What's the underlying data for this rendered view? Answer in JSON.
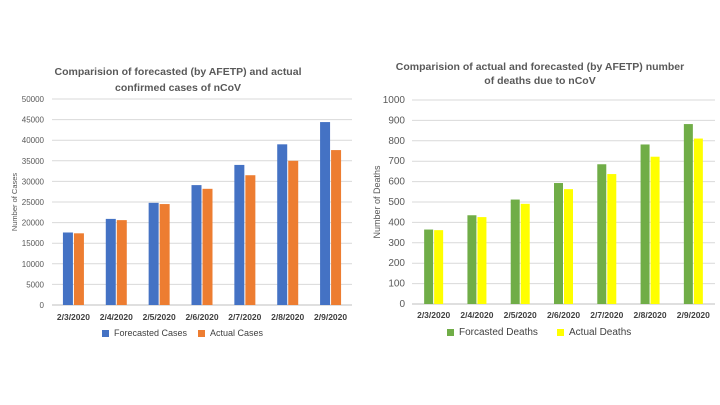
{
  "chart_data": [
    {
      "type": "bar",
      "title": [
        "Comparision  of forecasted (by AFETP) and actual",
        "confirmed cases of nCoV"
      ],
      "xlabel": "",
      "ylabel": "Number of Cases",
      "categories": [
        "2/3/2020",
        "2/4/2020",
        "2/5/2020",
        "2/6/2020",
        "2/7/2020",
        "2/8/2020",
        "2/9/2020"
      ],
      "ylim": [
        0,
        50000
      ],
      "yticks": [
        "0",
        "5000",
        "10000",
        "15000",
        "20000",
        "25000",
        "30000",
        "35000",
        "40000",
        "45000",
        "50000"
      ],
      "grid": true,
      "legend_position": "bottom",
      "series": [
        {
          "name": "Forecasted Cases",
          "color": "#4472C4",
          "values": [
            17600,
            20900,
            24800,
            29100,
            34000,
            39000,
            44400
          ]
        },
        {
          "name": "Actual Cases",
          "color": "#ED7D31",
          "values": [
            17400,
            20600,
            24500,
            28200,
            31500,
            35000,
            37600
          ]
        }
      ]
    },
    {
      "type": "bar",
      "title": [
        "Comparision  of actual and forecasted (by AFETP) number",
        "of deaths due to nCoV"
      ],
      "xlabel": "",
      "ylabel": "Number of Deaths",
      "categories": [
        "2/3/2020",
        "2/4/2020",
        "2/5/2020",
        "2/6/2020",
        "2/7/2020",
        "2/8/2020",
        "2/9/2020"
      ],
      "ylim": [
        0,
        1000
      ],
      "yticks": [
        "0",
        "100",
        "200",
        "300",
        "400",
        "500",
        "600",
        "700",
        "800",
        "900",
        "1000"
      ],
      "grid": true,
      "legend_position": "bottom",
      "series": [
        {
          "name": "Forcasted Deaths",
          "color": "#70AD47",
          "values": [
            365,
            435,
            512,
            593,
            685,
            782,
            882
          ]
        },
        {
          "name": "Actual Deaths",
          "color": "#FFFF00",
          "values": [
            362,
            426,
            491,
            563,
            637,
            722,
            811
          ]
        }
      ]
    }
  ]
}
